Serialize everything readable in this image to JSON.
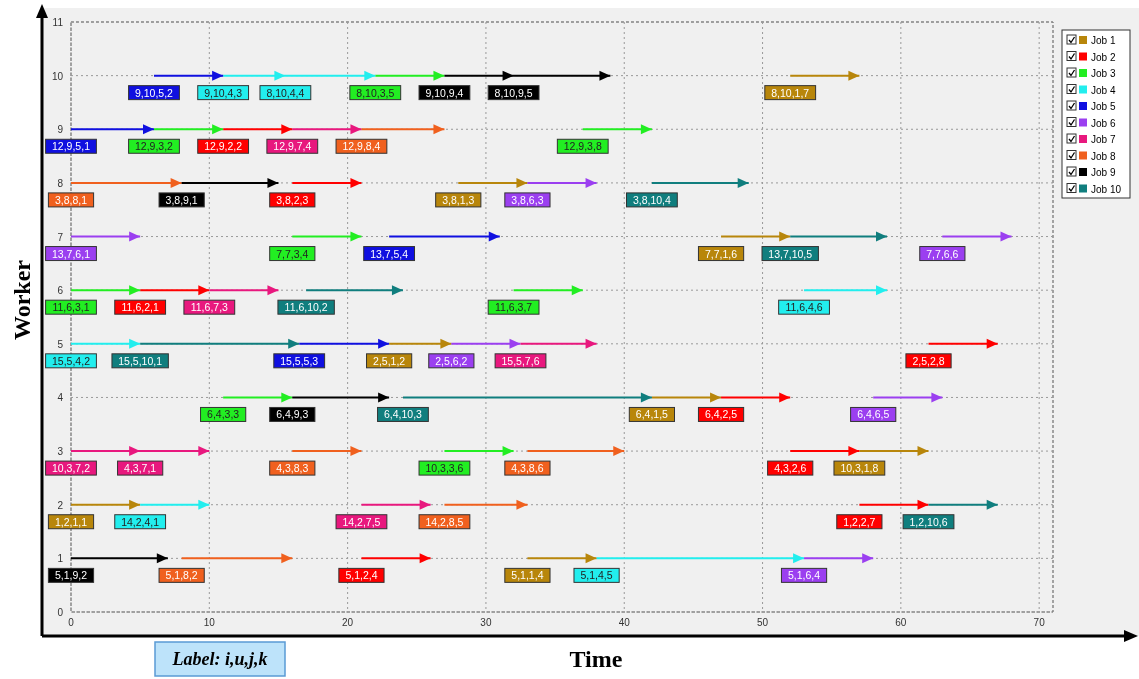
{
  "chart_data": {
    "type": "line",
    "xlabel": "Time",
    "ylabel": "Worker",
    "xlim": [
      0,
      71
    ],
    "ylim": [
      0,
      11
    ],
    "xticks": [
      0,
      10,
      20,
      30,
      40,
      50,
      60,
      70
    ],
    "yticks": [
      0,
      1,
      2,
      3,
      4,
      5,
      6,
      7,
      8,
      9,
      10,
      11
    ],
    "grid": true,
    "legend": "top right",
    "line_style": "solid",
    "annotations": [
      "Label: i,u,j,k"
    ],
    "series": [
      {
        "name": "Job 1",
        "color": "#b8860b",
        "x": [
          52,
          57,
          null,
          28,
          33,
          null,
          47,
          52,
          null,
          23,
          27.5,
          null,
          42,
          47,
          null,
          57,
          62,
          null,
          0,
          5,
          null,
          33,
          38,
          null
        ],
        "values": [
          10,
          10,
          null,
          8,
          8,
          null,
          7,
          7,
          null,
          5,
          5,
          null,
          4,
          4,
          null,
          3,
          3,
          null,
          2,
          2,
          null,
          1,
          1,
          null
        ],
        "value_labels": [
          "8,10,1,7",
          null,
          null,
          "3,8,1,3",
          null,
          null,
          "7,7,1,6",
          null,
          null,
          "2,5,1,2",
          null,
          null,
          "6,4,1,5",
          null,
          null,
          "10,3,1,8",
          null,
          null,
          "1,2,1,1",
          null,
          null,
          "5,1,1,4",
          null,
          null
        ]
      },
      {
        "name": "Job 2",
        "color": "#ff0000",
        "x": [
          11,
          16,
          null,
          16,
          21,
          null,
          5,
          10,
          null,
          62,
          67,
          null,
          47,
          52,
          null,
          52,
          57,
          null,
          57,
          62,
          null,
          21,
          26,
          null
        ],
        "values": [
          9,
          9,
          null,
          8,
          8,
          null,
          6,
          6,
          null,
          5,
          5,
          null,
          4,
          4,
          null,
          3,
          3,
          null,
          2,
          2,
          null,
          1,
          1,
          null
        ],
        "value_labels": [
          "12,9,2,2",
          null,
          null,
          "3,8,2,3",
          null,
          null,
          "11,6,2,1",
          null,
          null,
          "2,5,2,8",
          null,
          null,
          "6,4,2,5",
          null,
          null,
          "4,3,2,6",
          null,
          null,
          "1,2,2,7",
          null,
          null,
          "5,1,2,4",
          null,
          null
        ]
      },
      {
        "name": "Job 3",
        "color": "#22ee22",
        "x": [
          22,
          27,
          null,
          6,
          11,
          null,
          37,
          42,
          null,
          16,
          21,
          null,
          0,
          5,
          null,
          32,
          37,
          null,
          11,
          16,
          null,
          27,
          32,
          null
        ],
        "values": [
          10,
          10,
          null,
          9,
          9,
          null,
          9,
          9,
          null,
          7,
          7,
          null,
          6,
          6,
          null,
          6,
          6,
          null,
          4,
          4,
          null,
          3,
          3,
          null
        ],
        "value_labels": [
          "8,10,3,5",
          null,
          null,
          "12,9,3,2",
          null,
          null,
          "12,9,3,8",
          null,
          null,
          "7,7,3,4",
          null,
          null,
          "11,6,3,1",
          null,
          null,
          "11,6,3,7",
          null,
          null,
          "6,4,3,3",
          null,
          null,
          "10,3,3,6",
          null,
          null
        ]
      },
      {
        "name": "Job 4",
        "color": "#22eeee",
        "x": [
          11,
          15.5,
          null,
          15.5,
          22,
          null,
          53,
          59,
          null,
          0,
          5,
          null,
          5,
          10,
          null,
          38,
          53,
          null
        ],
        "values": [
          10,
          10,
          null,
          10,
          10,
          null,
          6,
          6,
          null,
          5,
          5,
          null,
          2,
          2,
          null,
          1,
          1,
          null
        ],
        "value_labels": [
          "9,10,4,3",
          null,
          null,
          "8,10,4,4",
          null,
          null,
          "11,6,4,6",
          null,
          null,
          "15,5,4,2",
          null,
          null,
          "14,2,4,1",
          null,
          null,
          "5,1,4,5",
          null,
          null
        ]
      },
      {
        "name": "Job 5",
        "color": "#1010e0",
        "x": [
          6,
          11,
          null,
          0,
          6,
          null,
          23,
          31,
          null,
          16.5,
          23,
          null
        ],
        "values": [
          10,
          10,
          null,
          9,
          9,
          null,
          7,
          7,
          null,
          5,
          5,
          null
        ],
        "value_labels": [
          "9,10,5,2",
          null,
          null,
          "12,9,5,1",
          null,
          null,
          "13,7,5,4",
          null,
          null,
          "15,5,5,3",
          null,
          null
        ]
      },
      {
        "name": "Job 6",
        "color": "#9b3ff0",
        "x": [
          33,
          38,
          null,
          0,
          5,
          null,
          63,
          68,
          null,
          27.5,
          32.5,
          null,
          58,
          63,
          null,
          53,
          58,
          null
        ],
        "values": [
          8,
          8,
          null,
          7,
          7,
          null,
          7,
          7,
          null,
          5,
          5,
          null,
          4,
          4,
          null,
          1,
          1,
          null
        ],
        "value_labels": [
          "3,8,6,3",
          null,
          null,
          "13,7,6,1",
          null,
          null,
          "7,7,6,6",
          null,
          null,
          "2,5,6,2",
          null,
          null,
          "6,4,6,5",
          null,
          null,
          "5,1,6,4",
          null,
          null
        ]
      },
      {
        "name": "Job 7",
        "color": "#e8187e",
        "x": [
          16,
          21,
          null,
          10,
          15,
          null,
          32.5,
          38,
          null,
          0,
          5,
          null,
          5,
          10,
          null,
          21,
          26,
          null
        ],
        "values": [
          9,
          9,
          null,
          6,
          6,
          null,
          5,
          5,
          null,
          3,
          3,
          null,
          3,
          3,
          null,
          2,
          2,
          null
        ],
        "value_labels": [
          "12,9,7,4",
          null,
          null,
          "11,6,7,3",
          null,
          null,
          "15,5,7,6",
          null,
          null,
          "10,3,7,2",
          null,
          null,
          "4,3,7,1",
          null,
          null,
          "14,2,7,5",
          null,
          null
        ]
      },
      {
        "name": "Job 8",
        "color": "#f0601e",
        "x": [
          21,
          27,
          null,
          0,
          8,
          null,
          16,
          21,
          null,
          33,
          40,
          null,
          27,
          33,
          null,
          8,
          16,
          null
        ],
        "values": [
          9,
          9,
          null,
          8,
          8,
          null,
          3,
          3,
          null,
          3,
          3,
          null,
          2,
          2,
          null,
          1,
          1,
          null
        ],
        "value_labels": [
          "12,9,8,4",
          null,
          null,
          "3,8,8,1",
          null,
          null,
          "4,3,8,3",
          null,
          null,
          "4,3,8,6",
          null,
          null,
          "14,2,8,5",
          null,
          null,
          "5,1,8,2",
          null,
          null
        ]
      },
      {
        "name": "Job 9",
        "color": "#000000",
        "x": [
          27,
          32,
          null,
          32,
          39,
          null,
          8,
          15,
          null,
          16,
          23,
          null,
          0,
          7,
          null
        ],
        "values": [
          10,
          10,
          null,
          10,
          10,
          null,
          8,
          8,
          null,
          4,
          4,
          null,
          1,
          1,
          null
        ],
        "value_labels": [
          "9,10,9,4",
          null,
          null,
          "8,10,9,5",
          null,
          null,
          "3,8,9,1",
          null,
          null,
          "6,4,9,3",
          null,
          null,
          "5,1,9,2",
          null,
          null
        ]
      },
      {
        "name": "Job 10",
        "color": "#107e7e",
        "x": [
          42,
          49,
          null,
          52,
          59,
          null,
          17,
          24,
          null,
          5,
          16.5,
          null,
          24,
          42,
          null,
          62,
          67,
          null
        ],
        "values": [
          8,
          8,
          null,
          7,
          7,
          null,
          6,
          6,
          null,
          5,
          5,
          null,
          4,
          4,
          null,
          2,
          2,
          null
        ],
        "value_labels": [
          "3,8,10,4",
          null,
          null,
          "13,7,10,5",
          null,
          null,
          "11,6,10,2",
          null,
          null,
          "15,5,10,1",
          null,
          null,
          "6,4,10,3",
          null,
          null,
          "1,2,10,6",
          null,
          null
        ]
      }
    ]
  }
}
